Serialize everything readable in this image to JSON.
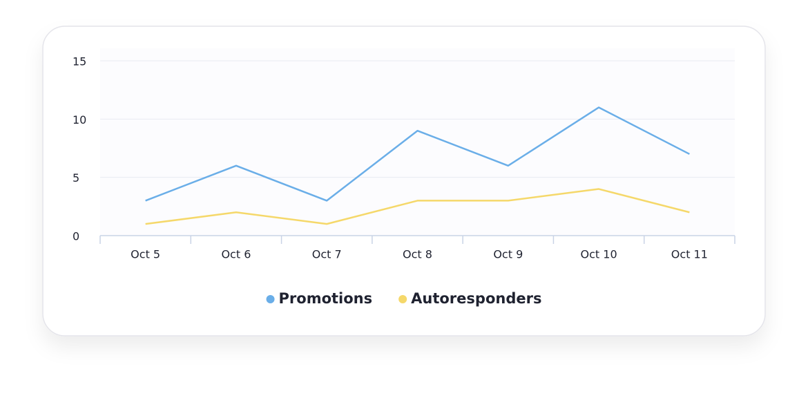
{
  "chart_data": {
    "type": "line",
    "categories": [
      "Oct 5",
      "Oct 6",
      "Oct 7",
      "Oct 8",
      "Oct 9",
      "Oct 10",
      "Oct 11"
    ],
    "series": [
      {
        "name": "Promotions",
        "color": "#6aaee8",
        "values": [
          3,
          6,
          3,
          9,
          6,
          11,
          7
        ]
      },
      {
        "name": "Autoresponders",
        "color": "#f5d86a",
        "values": [
          1,
          2,
          1,
          3,
          3,
          4,
          2
        ]
      }
    ],
    "ylim": [
      0,
      15
    ],
    "yticks": [
      0,
      5,
      10,
      15
    ],
    "grid": true,
    "legend": "bottom"
  }
}
